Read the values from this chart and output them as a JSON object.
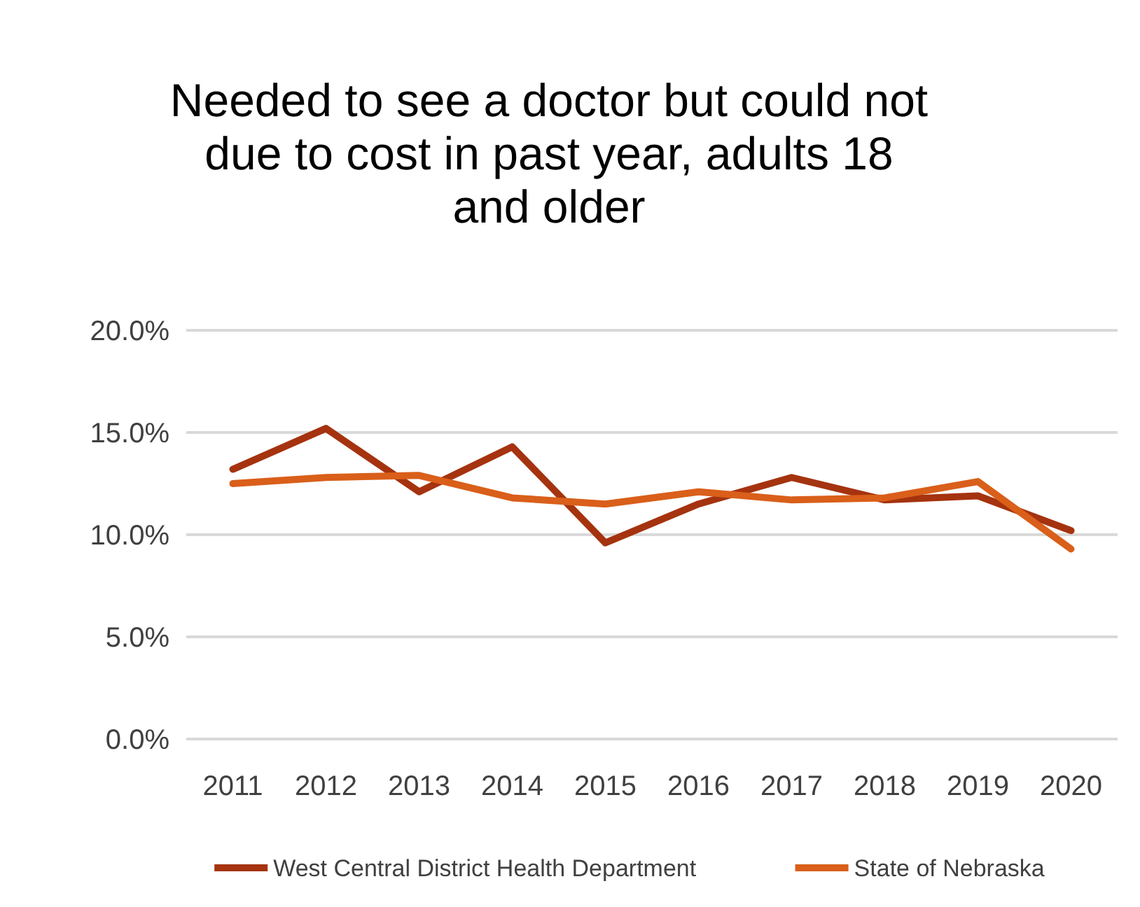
{
  "chart_data": {
    "type": "line",
    "title": "Needed to see a doctor but could not due to cost in past year, adults 18 and older",
    "categories": [
      "2011",
      "2012",
      "2013",
      "2014",
      "2015",
      "2016",
      "2017",
      "2018",
      "2019",
      "2020"
    ],
    "series": [
      {
        "name": "West Central District Health Department",
        "color": "#a5330f",
        "values": [
          13.2,
          15.2,
          12.1,
          14.3,
          9.6,
          11.5,
          12.8,
          11.7,
          11.9,
          10.2
        ]
      },
      {
        "name": "State of Nebraska",
        "color": "#d95f1a",
        "values": [
          12.5,
          12.8,
          12.9,
          11.8,
          11.5,
          12.1,
          11.7,
          11.8,
          12.6,
          9.3
        ]
      }
    ],
    "ylim": [
      0,
      20
    ],
    "yticks": [
      {
        "value": 0,
        "label": "0.0%"
      },
      {
        "value": 5,
        "label": "5.0%"
      },
      {
        "value": 10,
        "label": "10.0%"
      },
      {
        "value": 15,
        "label": "15.0%"
      },
      {
        "value": 20,
        "label": "20.0%"
      }
    ],
    "grid": "y",
    "legend": "bottom",
    "marker": "none",
    "line_style": "solid"
  }
}
